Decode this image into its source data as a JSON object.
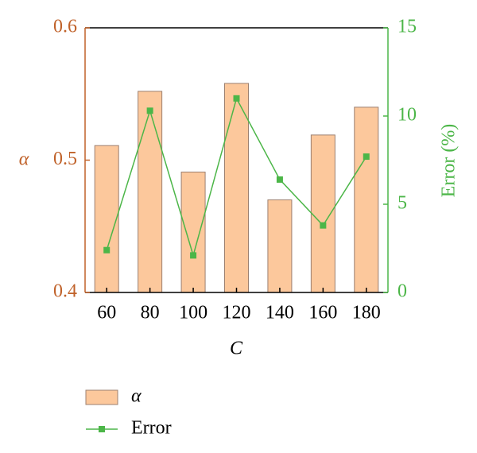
{
  "chart_data": {
    "type": "combo",
    "categories": [
      "60",
      "80",
      "100",
      "120",
      "140",
      "160",
      "180"
    ],
    "xlabel": "C",
    "ylabel": "α",
    "y2label": "Error (%)",
    "ylim": [
      0.4,
      0.6
    ],
    "yticks": [
      0.4,
      0.5,
      0.6
    ],
    "y2lim": [
      0,
      15
    ],
    "y2ticks": [
      0,
      5,
      10,
      15
    ],
    "ycolor": "#c0622a",
    "y2color": "#4cb648",
    "legend": "bottom",
    "series": [
      {
        "name": "α",
        "type": "bar",
        "color": "#fcc89c",
        "values": [
          0.511,
          0.552,
          0.491,
          0.558,
          0.47,
          0.519,
          0.54
        ]
      },
      {
        "name": "Error",
        "type": "line",
        "axis": "y2",
        "color": "#4cb648",
        "values": [
          2.4,
          10.3,
          2.1,
          11.0,
          6.4,
          3.8,
          7.7
        ]
      }
    ]
  }
}
